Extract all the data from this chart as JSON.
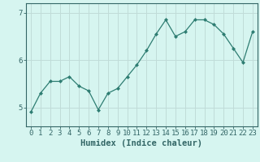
{
  "x": [
    0,
    1,
    2,
    3,
    4,
    5,
    6,
    7,
    8,
    9,
    10,
    11,
    12,
    13,
    14,
    15,
    16,
    17,
    18,
    19,
    20,
    21,
    22,
    23
  ],
  "y": [
    4.9,
    5.3,
    5.55,
    5.55,
    5.65,
    5.45,
    5.35,
    4.95,
    5.3,
    5.4,
    5.65,
    5.9,
    6.2,
    6.55,
    6.85,
    6.5,
    6.6,
    6.85,
    6.85,
    6.75,
    6.55,
    6.25,
    5.95,
    6.6
  ],
  "line_color": "#2e7d72",
  "marker": "D",
  "marker_size": 2.0,
  "bg_color": "#d6f5f0",
  "grid_color": "#c0dcd8",
  "axis_color": "#336666",
  "xlabel": "Humidex (Indice chaleur)",
  "xlabel_fontsize": 7.5,
  "ylim": [
    4.6,
    7.2
  ],
  "xlim": [
    -0.5,
    23.5
  ],
  "yticks": [
    5,
    6,
    7
  ],
  "xtick_labels": [
    "0",
    "1",
    "2",
    "3",
    "4",
    "5",
    "6",
    "7",
    "8",
    "9",
    "10",
    "11",
    "12",
    "13",
    "14",
    "15",
    "16",
    "17",
    "18",
    "19",
    "20",
    "21",
    "22",
    "23"
  ],
  "tick_fontsize": 6.5,
  "linewidth": 0.9
}
